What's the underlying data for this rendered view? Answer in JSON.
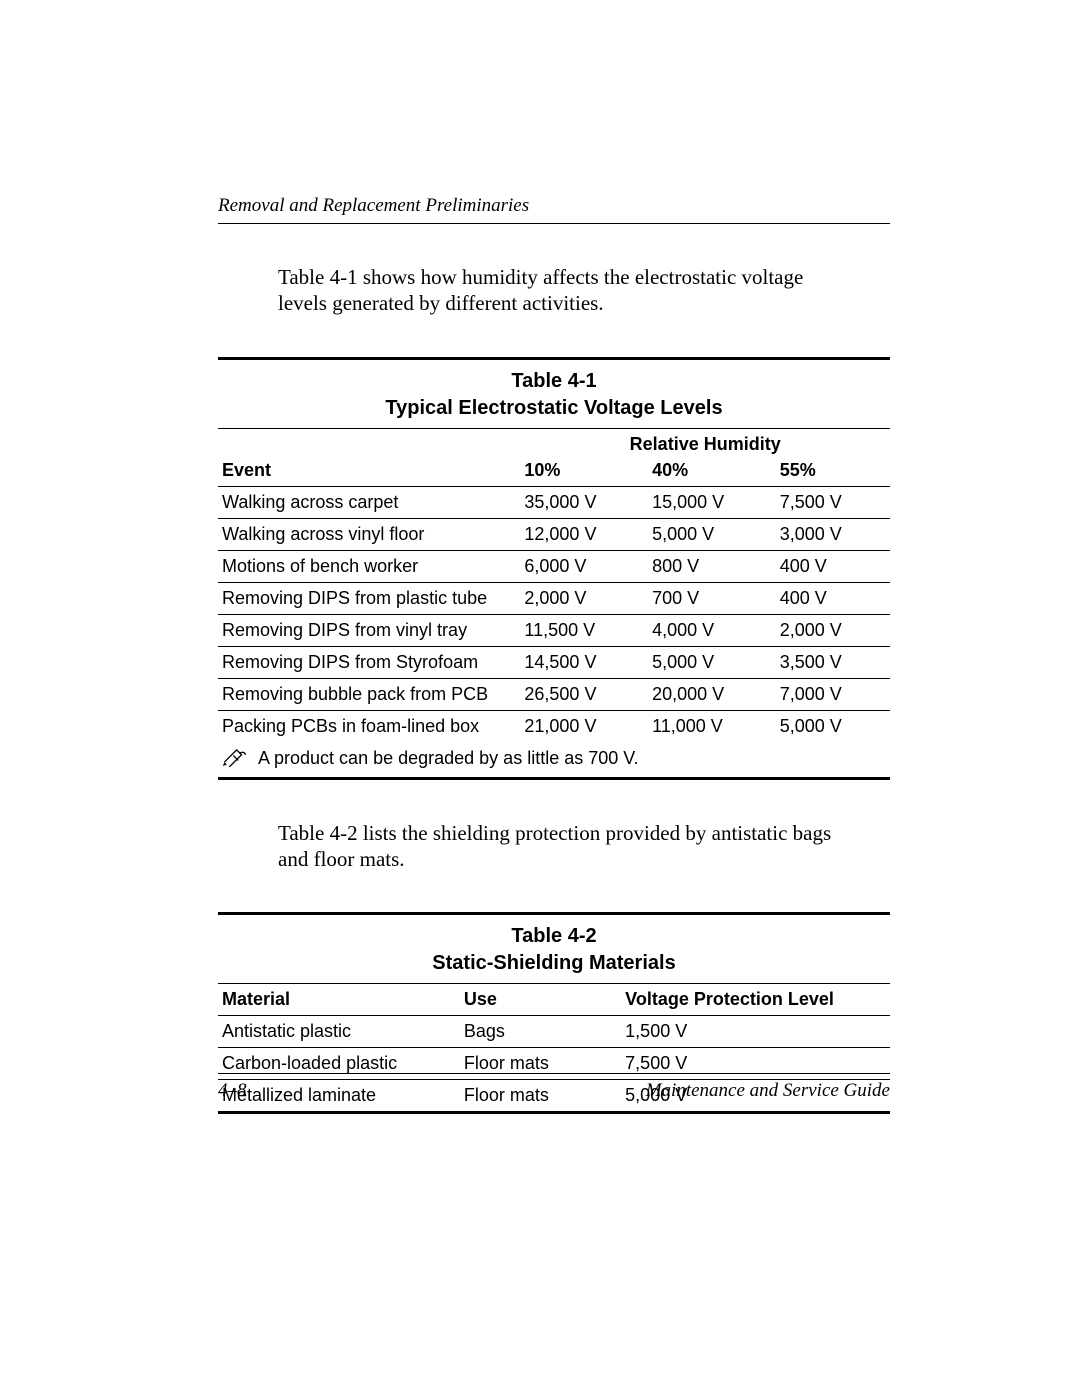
{
  "header": {
    "running": "Removal and Replacement Preliminaries"
  },
  "intro1": "Table 4-1 shows how humidity affects the electrostatic voltage levels generated by different activities.",
  "table1": {
    "label": "Table 4-1",
    "title": "Typical Electrostatic Voltage Levels",
    "superhead": "Relative Humidity",
    "columns": [
      "Event",
      "10%",
      "40%",
      "55%"
    ],
    "rows": [
      [
        "Walking across carpet",
        "35,000 V",
        "15,000 V",
        "7,500 V"
      ],
      [
        "Walking across vinyl floor",
        "12,000 V",
        "5,000 V",
        "3,000 V"
      ],
      [
        "Motions of bench worker",
        "6,000 V",
        "800 V",
        "400 V"
      ],
      [
        "Removing DIPS from plastic tube",
        "2,000 V",
        "700 V",
        "400 V"
      ],
      [
        "Removing DIPS from vinyl tray",
        "11,500 V",
        "4,000 V",
        "2,000 V"
      ],
      [
        "Removing DIPS from Styrofoam",
        "14,500 V",
        "5,000 V",
        "3,500 V"
      ],
      [
        "Removing bubble pack from PCB",
        "26,500 V",
        "20,000 V",
        "7,000 V"
      ],
      [
        "Packing PCBs in foam-lined box",
        "21,000 V",
        "11,000 V",
        "5,000 V"
      ]
    ],
    "note": "A product can be degraded by as little as 700 V."
  },
  "intro2": "Table 4-2 lists the shielding protection provided by antistatic bags and floor mats.",
  "table2": {
    "label": "Table 4-2",
    "title": "Static-Shielding Materials",
    "columns": [
      "Material",
      "Use",
      "Voltage Protection Level"
    ],
    "rows": [
      [
        "Antistatic plastic",
        "Bags",
        "1,500 V"
      ],
      [
        "Carbon-loaded plastic",
        "Floor mats",
        "7,500 V"
      ],
      [
        "Metallized laminate",
        "Floor mats",
        "5,000 V"
      ]
    ]
  },
  "footer": {
    "page": "4–8",
    "doc": "Maintenance and Service Guide"
  }
}
